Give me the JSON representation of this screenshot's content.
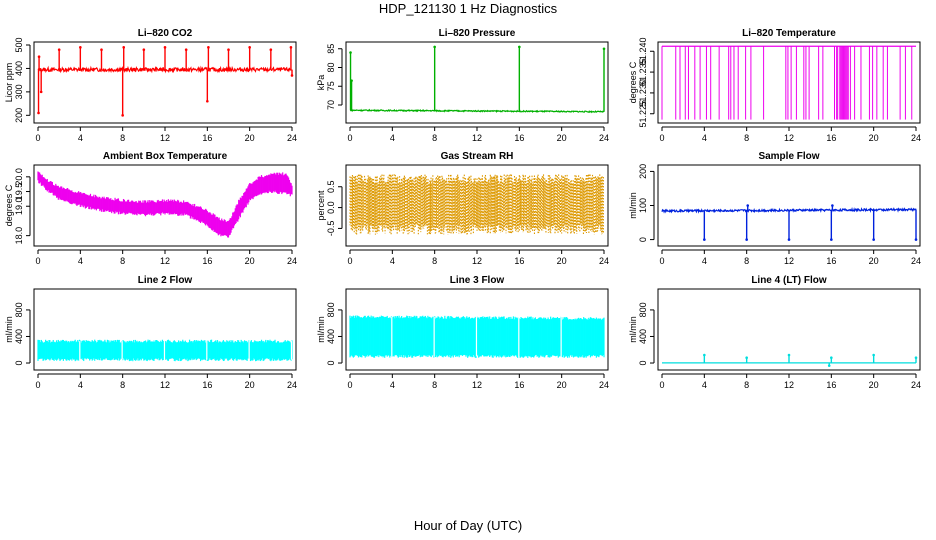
{
  "figure": {
    "title": "HDP_121130  1 Hz Diagnostics",
    "xlabel": "Hour of Day (UTC)"
  },
  "chart_data": [
    {
      "type": "line",
      "title": "Li–820 CO2",
      "ylabel": "Licor ppm",
      "color": "#ff0000",
      "xlim": [
        0,
        24
      ],
      "ylim": [
        180,
        500
      ],
      "xticks": [
        0,
        4,
        8,
        12,
        16,
        20,
        24
      ],
      "yticks": [
        200,
        300,
        400,
        500
      ],
      "baseline": 395,
      "noise": 8,
      "spikes": [
        {
          "x": 0.05,
          "y": 210
        },
        {
          "x": 0.1,
          "y": 450
        },
        {
          "x": 0.3,
          "y": 300
        },
        {
          "x": 2.0,
          "y": 480
        },
        {
          "x": 4.0,
          "y": 490
        },
        {
          "x": 6.0,
          "y": 480
        },
        {
          "x": 8.0,
          "y": 200
        },
        {
          "x": 8.1,
          "y": 490
        },
        {
          "x": 10.0,
          "y": 480
        },
        {
          "x": 12.0,
          "y": 490
        },
        {
          "x": 14.0,
          "y": 480
        },
        {
          "x": 16.0,
          "y": 260
        },
        {
          "x": 16.1,
          "y": 490
        },
        {
          "x": 18.0,
          "y": 480
        },
        {
          "x": 20.0,
          "y": 490
        },
        {
          "x": 22.0,
          "y": 480
        },
        {
          "x": 23.9,
          "y": 490
        },
        {
          "x": 24.0,
          "y": 370
        }
      ]
    },
    {
      "type": "line",
      "title": "Li–820 Pressure",
      "ylabel": "kPa",
      "color": "#00b000",
      "xlim": [
        0,
        24
      ],
      "ylim": [
        66,
        86
      ],
      "xticks": [
        0,
        4,
        8,
        12,
        16,
        20,
        24
      ],
      "yticks": [
        70,
        75,
        80,
        85
      ],
      "baseline_start": 68.6,
      "baseline_end": 68.2,
      "noise": 0.15,
      "spikes": [
        {
          "x": 0.05,
          "y": 84
        },
        {
          "x": 0.15,
          "y": 76.5
        },
        {
          "x": 8.0,
          "y": 85.5
        },
        {
          "x": 16.0,
          "y": 85.5
        },
        {
          "x": 24.0,
          "y": 85
        }
      ]
    },
    {
      "type": "line",
      "title": "Li–820 Temperature",
      "ylabel": "degrees C",
      "color": "#ee00ee",
      "xlim": [
        0,
        24
      ],
      "ylim": [
        51.2235,
        51.2415
      ],
      "xticks": [
        0,
        4,
        8,
        12,
        16,
        20,
        24
      ],
      "yticks": [
        51.225,
        51.23,
        51.235,
        51.24
      ],
      "ytick_labels": [
        "51.225",
        "51.230",
        "51.235",
        "51.240"
      ],
      "top_value": 51.2412,
      "bottom_value": 51.2236,
      "drop_times": [
        1.3,
        1.7,
        2.2,
        2.5,
        3.1,
        3.6,
        4.2,
        4.6,
        5.4,
        6.3,
        6.5,
        6.8,
        7.2,
        7.9,
        8.4,
        9.6,
        11.7,
        11.9,
        12.2,
        12.7,
        13.4,
        13.6,
        13.9,
        14.8,
        15.2,
        16.3,
        16.5,
        16.6,
        16.8,
        16.9,
        17.0,
        17.1,
        17.2,
        17.3,
        17.4,
        17.5,
        17.6,
        17.8,
        18.2,
        18.8,
        19.6,
        19.9,
        20.3,
        20.9,
        21.3,
        22.5,
        23.0,
        23.6
      ]
    },
    {
      "type": "band",
      "title": "Ambient Box Temperature",
      "ylabel": "degrees C",
      "color": "#ee00ee",
      "xlim": [
        0,
        24
      ],
      "ylim": [
        17.75,
        20.3
      ],
      "xticks": [
        0,
        4,
        8,
        12,
        16,
        20,
        24
      ],
      "yticks": [
        18.0,
        19.0,
        19.5,
        20.0
      ],
      "ytick_labels": [
        "18.0",
        "19.0",
        "19.5",
        "20.0"
      ],
      "x": [
        0,
        1,
        2,
        4,
        6,
        8,
        10,
        12,
        14,
        16,
        17,
        18,
        19,
        20,
        21,
        22,
        23,
        23.5,
        24
      ],
      "upper": [
        20.2,
        19.85,
        19.65,
        19.45,
        19.3,
        19.2,
        19.15,
        19.2,
        19.15,
        18.85,
        18.6,
        18.45,
        19.2,
        19.75,
        20.0,
        20.1,
        20.1,
        20.1,
        19.7
      ],
      "lower": [
        19.85,
        19.5,
        19.25,
        19.0,
        18.85,
        18.75,
        18.7,
        18.75,
        18.7,
        18.35,
        18.05,
        17.95,
        18.6,
        19.2,
        19.4,
        19.5,
        19.45,
        19.45,
        19.35
      ]
    },
    {
      "type": "band",
      "title": "Gas Stream RH",
      "ylabel": "percent",
      "color": "#dd9900",
      "xlim": [
        0,
        24
      ],
      "ylim": [
        -0.85,
        0.95
      ],
      "xticks": [
        0,
        4,
        8,
        12,
        16,
        20,
        24
      ],
      "yticks": [
        -0.5,
        0.0,
        0.5
      ],
      "ytick_labels": [
        "-0.5",
        "0.0",
        "0.5"
      ],
      "x": [
        0,
        24
      ],
      "upper": [
        0.8,
        0.8
      ],
      "lower": [
        -0.65,
        -0.65
      ],
      "dotted": true
    },
    {
      "type": "line",
      "title": "Sample Flow",
      "ylabel": "ml/min",
      "color": "#0022dd",
      "xlim": [
        0,
        24
      ],
      "ylim": [
        -10,
        210
      ],
      "xticks": [
        0,
        4,
        8,
        12,
        16,
        20,
        24
      ],
      "yticks": [
        0,
        100,
        200
      ],
      "baseline_start": 84,
      "baseline_end": 88,
      "noise": 3,
      "spikes": [
        {
          "x": 4.0,
          "y": 0
        },
        {
          "x": 8.0,
          "y": 0
        },
        {
          "x": 8.1,
          "y": 100
        },
        {
          "x": 12.0,
          "y": 0
        },
        {
          "x": 16.0,
          "y": 0
        },
        {
          "x": 16.1,
          "y": 100
        },
        {
          "x": 20.0,
          "y": 0
        },
        {
          "x": 24.0,
          "y": 0
        }
      ]
    },
    {
      "type": "band",
      "title": "Line 2 Flow",
      "ylabel": "ml/min",
      "color": "#00ffff",
      "xlim": [
        0,
        24
      ],
      "ylim": [
        -60,
        1070
      ],
      "xticks": [
        0,
        4,
        8,
        12,
        16,
        20,
        24
      ],
      "yticks": [
        0,
        400,
        800
      ],
      "x": [
        0,
        24
      ],
      "upper": [
        330,
        330
      ],
      "lower": [
        50,
        50
      ],
      "gaps": [
        3.95,
        7.95,
        11.95,
        15.95,
        19.95,
        23.95
      ]
    },
    {
      "type": "band",
      "title": "Line 3 Flow",
      "ylabel": "ml/min",
      "color": "#00ffff",
      "xlim": [
        0,
        24
      ],
      "ylim": [
        -60,
        1070
      ],
      "xticks": [
        0,
        4,
        8,
        12,
        16,
        20,
        24
      ],
      "yticks": [
        0,
        400,
        800
      ],
      "x": [
        0,
        24
      ],
      "upper": [
        700,
        670
      ],
      "lower": [
        100,
        100
      ],
      "gaps": [
        3.95,
        7.95,
        11.95,
        15.95,
        19.95
      ]
    },
    {
      "type": "line",
      "title": "Line 4 (LT) Flow",
      "ylabel": "ml/min",
      "color": "#00dddd",
      "xlim": [
        0,
        24
      ],
      "ylim": [
        -60,
        1070
      ],
      "xticks": [
        0,
        4,
        8,
        12,
        16,
        20,
        24
      ],
      "yticks": [
        0,
        400,
        800
      ],
      "baseline_start": 2,
      "baseline_end": 2,
      "noise": 0,
      "spikes": [
        {
          "x": 4.0,
          "y": 120
        },
        {
          "x": 8.0,
          "y": 80
        },
        {
          "x": 12.0,
          "y": 120
        },
        {
          "x": 15.8,
          "y": -40
        },
        {
          "x": 16.0,
          "y": 80
        },
        {
          "x": 20.0,
          "y": 120
        },
        {
          "x": 24.0,
          "y": 80
        }
      ]
    }
  ]
}
